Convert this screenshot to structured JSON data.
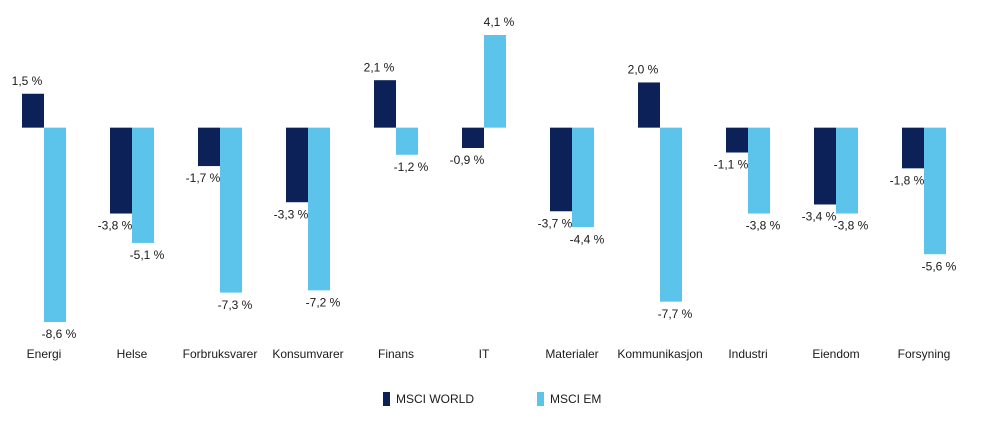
{
  "chart_data": {
    "type": "bar",
    "categories": [
      "Energi",
      "Helse",
      "Forbruksvarer",
      "Konsumvarer",
      "Finans",
      "IT",
      "Materialer",
      "Kommunikasjon",
      "Industri",
      "Eiendom",
      "Forsyning"
    ],
    "series": [
      {
        "name": "MSCI WORLD",
        "color": "#0c2158",
        "values": [
          1.5,
          -3.8,
          -1.7,
          -3.3,
          2.1,
          -0.9,
          -3.7,
          2.0,
          -1.1,
          -3.4,
          -1.8
        ],
        "value_labels": [
          "1,5 %",
          "-3,8 %",
          "-1,7 %",
          "-3,3 %",
          "2,1 %",
          "-0,9 %",
          "-3,7 %",
          "2,0 %",
          "-1,1 %",
          "-3,4 %",
          "-1,8 %"
        ]
      },
      {
        "name": "MSCI EM",
        "color": "#5cc3ea",
        "values": [
          -8.6,
          -5.1,
          -7.3,
          -7.2,
          -1.2,
          4.1,
          -4.4,
          -7.7,
          -3.8,
          -3.8,
          -5.6
        ],
        "value_labels": [
          "-8,6 %",
          "-5,1 %",
          "-7,3 %",
          "-7,2 %",
          "-1,2 %",
          "4,1 %",
          "-4,4 %",
          "-7,7 %",
          "-3,8 %",
          "-3,8 %",
          "-5,6 %"
        ]
      }
    ]
  }
}
